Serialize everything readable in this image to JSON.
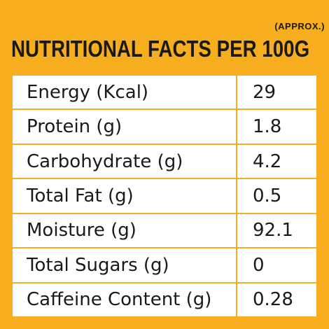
{
  "header": {
    "approx_note": "(APPROX.)",
    "title": "NUTRITIONAL FACTS PER 100G"
  },
  "rows": [
    {
      "nutrient": "Energy (Kcal)",
      "value": "29"
    },
    {
      "nutrient": "Protein (g)",
      "value": "1.8"
    },
    {
      "nutrient": "Carbohydrate (g)",
      "value": "4.2"
    },
    {
      "nutrient": "Total Fat (g)",
      "value": "0.5"
    },
    {
      "nutrient": "Moisture (g)",
      "value": "92.1"
    },
    {
      "nutrient": "Total Sugars (g)",
      "value": "0"
    },
    {
      "nutrient": "Caffeine Content (g)",
      "value": "0.28"
    }
  ],
  "colors": {
    "background": "#F7AE1E",
    "table_background": "#FFFFFF",
    "text": "#1A1A1A"
  }
}
